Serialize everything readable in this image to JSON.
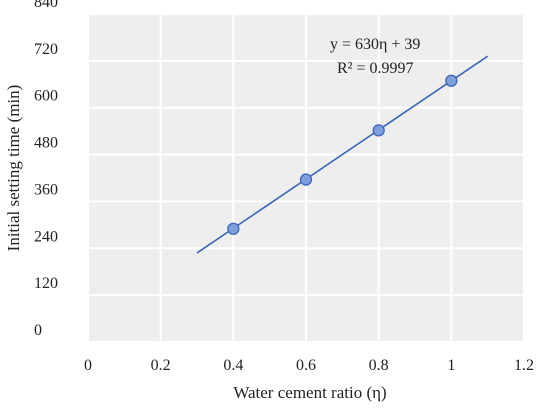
{
  "chart_data": {
    "type": "scatter",
    "xlabel": "Water cement ratio (η)",
    "ylabel": "Initial setting time (min)",
    "xlim": [
      0,
      1.2
    ],
    "ylim": [
      0,
      840
    ],
    "x_ticks": [
      "0",
      "0.2",
      "0.4",
      "0.6",
      "0.8",
      "1",
      "1.2"
    ],
    "y_ticks": [
      "0",
      "120",
      "240",
      "360",
      "480",
      "600",
      "720",
      "840"
    ],
    "grid": true,
    "series": [
      {
        "x": [
          0.4,
          0.6,
          0.8,
          1.0
        ],
        "y": [
          290,
          416,
          542,
          669
        ]
      }
    ],
    "trendline": {
      "slope": 630,
      "intercept": 39,
      "x_start": 0.3,
      "x_end": 1.1
    },
    "annotations": [
      "y = 630η + 39",
      "R² = 0.9997"
    ],
    "colors": {
      "plot_background": "#eeeeee",
      "grid": "#ffffff",
      "line": "#3a66b8",
      "marker_fill": "#7f9fdc",
      "marker_stroke": "#3a66b8"
    }
  }
}
